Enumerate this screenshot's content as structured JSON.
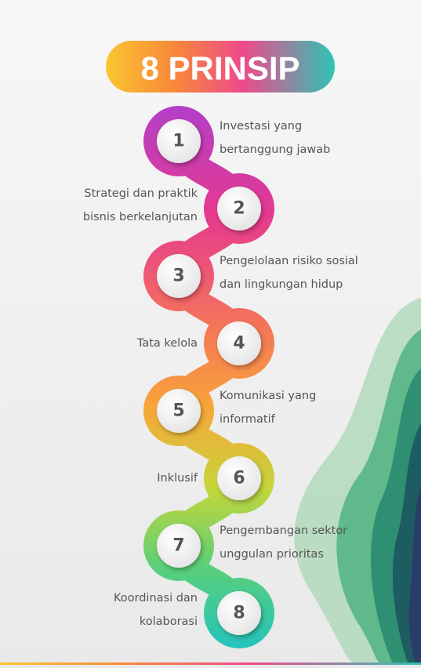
{
  "header": {
    "title": "8 PRINSIP"
  },
  "items": [
    {
      "number": 1,
      "label": [
        "Investasi yang",
        "bertanggung jawab"
      ]
    },
    {
      "number": 2,
      "label": [
        "Strategi dan praktik",
        "bisnis berkelanjutan"
      ]
    },
    {
      "number": 3,
      "label": [
        "Pengelolaan risiko sosial",
        "dan lingkungan hidup"
      ]
    },
    {
      "number": 4,
      "label": [
        "Tata kelola"
      ]
    },
    {
      "number": 5,
      "label": [
        "Komunikasi yang",
        "informatif"
      ]
    },
    {
      "number": 6,
      "label": [
        "Inklusif"
      ]
    },
    {
      "number": 7,
      "label": [
        "Pengembangan sektor",
        "unggulan prioritas"
      ]
    },
    {
      "number": 8,
      "label": [
        "Koordinasi dan",
        "kolaborasi"
      ]
    }
  ]
}
